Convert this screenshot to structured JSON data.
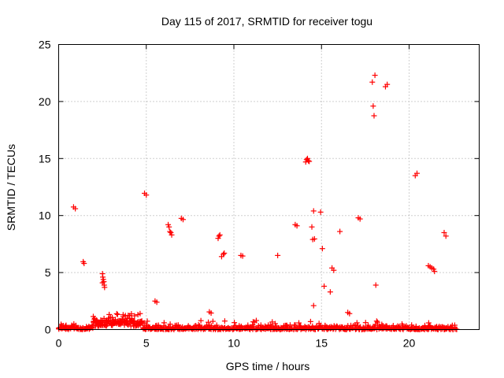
{
  "chart_data": {
    "type": "scatter",
    "title": "Day 115 of 2017, SRMTID for receiver togu",
    "xlabel": "GPS time / hours",
    "ylabel": "SRMTID / TECUs",
    "xlim": [
      0,
      24
    ],
    "ylim": [
      0,
      25
    ],
    "xticks": [
      0,
      5,
      10,
      15,
      20
    ],
    "yticks": [
      0,
      5,
      10,
      15,
      20,
      25
    ],
    "grid": true,
    "marker": "plus",
    "color": "#ff0000",
    "series": [
      {
        "name": "SRMTID",
        "points": [
          [
            0.85,
            10.75
          ],
          [
            0.95,
            10.6
          ],
          [
            1.4,
            5.95
          ],
          [
            1.45,
            5.8
          ],
          [
            2.5,
            4.9
          ],
          [
            2.52,
            4.6
          ],
          [
            2.55,
            4.4
          ],
          [
            2.58,
            4.2
          ],
          [
            2.6,
            3.9
          ],
          [
            2.62,
            3.7
          ],
          [
            2.5,
            4.1
          ],
          [
            4.9,
            11.95
          ],
          [
            5.0,
            11.8
          ],
          [
            5.5,
            2.5
          ],
          [
            5.6,
            2.4
          ],
          [
            6.25,
            9.2
          ],
          [
            6.3,
            9.0
          ],
          [
            6.35,
            8.6
          ],
          [
            6.4,
            8.5
          ],
          [
            6.45,
            8.3
          ],
          [
            7.0,
            9.75
          ],
          [
            7.1,
            9.65
          ],
          [
            8.6,
            1.55
          ],
          [
            8.7,
            1.45
          ],
          [
            9.1,
            8.0
          ],
          [
            9.15,
            8.2
          ],
          [
            9.2,
            8.3
          ],
          [
            9.3,
            6.4
          ],
          [
            9.4,
            6.6
          ],
          [
            9.45,
            6.7
          ],
          [
            10.4,
            6.5
          ],
          [
            10.5,
            6.45
          ],
          [
            12.5,
            6.5
          ],
          [
            13.5,
            9.2
          ],
          [
            13.6,
            9.1
          ],
          [
            14.1,
            14.7
          ],
          [
            14.15,
            14.9
          ],
          [
            14.2,
            15.0
          ],
          [
            14.25,
            14.8
          ],
          [
            14.3,
            14.75
          ],
          [
            14.45,
            9.0
          ],
          [
            14.55,
            10.4
          ],
          [
            14.5,
            7.9
          ],
          [
            14.6,
            7.95
          ],
          [
            14.55,
            2.1
          ],
          [
            14.95,
            10.3
          ],
          [
            15.05,
            7.1
          ],
          [
            15.15,
            3.8
          ],
          [
            15.5,
            3.3
          ],
          [
            15.6,
            5.4
          ],
          [
            15.7,
            5.2
          ],
          [
            16.05,
            8.6
          ],
          [
            16.5,
            1.5
          ],
          [
            16.6,
            1.4
          ],
          [
            17.1,
            9.8
          ],
          [
            17.2,
            9.7
          ],
          [
            17.9,
            21.7
          ],
          [
            17.95,
            19.6
          ],
          [
            18.05,
            22.3
          ],
          [
            18.0,
            18.75
          ],
          [
            18.1,
            3.9
          ],
          [
            18.65,
            21.3
          ],
          [
            18.75,
            21.5
          ],
          [
            20.35,
            13.5
          ],
          [
            20.45,
            13.7
          ],
          [
            21.1,
            5.6
          ],
          [
            21.2,
            5.5
          ],
          [
            21.3,
            5.4
          ],
          [
            21.4,
            5.3
          ],
          [
            21.45,
            5.1
          ],
          [
            22.0,
            8.5
          ],
          [
            22.1,
            8.2
          ]
        ]
      }
    ],
    "baseline_noise": {
      "description": "dense cluster of near-zero values",
      "x_range": [
        0,
        22.7
      ],
      "typical_y": [
        0,
        0.4
      ],
      "raised_section": {
        "x_range": [
          2.0,
          4.8
        ],
        "typical_y": [
          0.3,
          1.4
        ]
      }
    }
  }
}
